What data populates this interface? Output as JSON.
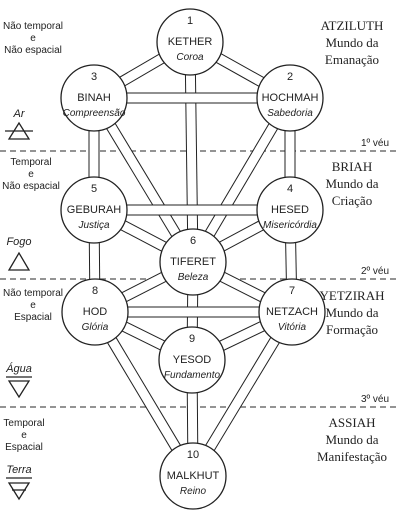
{
  "sephirot": [
    {
      "id": "s1",
      "number": "1",
      "name": "KETHER",
      "meaning": "Coroa"
    },
    {
      "id": "s2",
      "number": "2",
      "name": "HOCHMAH",
      "meaning": "Sabedoria"
    },
    {
      "id": "s3",
      "number": "3",
      "name": "BINAH",
      "meaning": "Compreensão"
    },
    {
      "id": "s4",
      "number": "4",
      "name": "HESED",
      "meaning": "Misericórdia"
    },
    {
      "id": "s5",
      "number": "5",
      "name": "GEBURAH",
      "meaning": "Justiça"
    },
    {
      "id": "s6",
      "number": "6",
      "name": "TIFERET",
      "meaning": "Beleza"
    },
    {
      "id": "s7",
      "number": "7",
      "name": "NETZACH",
      "meaning": "Vitória"
    },
    {
      "id": "s8",
      "number": "8",
      "name": "HOD",
      "meaning": "Glória"
    },
    {
      "id": "s9",
      "number": "9",
      "name": "YESOD",
      "meaning": "Fundamento"
    },
    {
      "id": "s10",
      "number": "10",
      "name": "MALKHUT",
      "meaning": "Reino"
    }
  ],
  "paths": [
    [
      "s1",
      "s2"
    ],
    [
      "s1",
      "s3"
    ],
    [
      "s1",
      "s6"
    ],
    [
      "s2",
      "s3"
    ],
    [
      "s2",
      "s4"
    ],
    [
      "s2",
      "s6"
    ],
    [
      "s3",
      "s5"
    ],
    [
      "s3",
      "s6"
    ],
    [
      "s4",
      "s5"
    ],
    [
      "s4",
      "s6"
    ],
    [
      "s4",
      "s7"
    ],
    [
      "s5",
      "s6"
    ],
    [
      "s5",
      "s8"
    ],
    [
      "s6",
      "s7"
    ],
    [
      "s6",
      "s8"
    ],
    [
      "s6",
      "s9"
    ],
    [
      "s7",
      "s8"
    ],
    [
      "s7",
      "s9"
    ],
    [
      "s7",
      "s10"
    ],
    [
      "s8",
      "s9"
    ],
    [
      "s8",
      "s10"
    ],
    [
      "s9",
      "s10"
    ]
  ],
  "worlds": [
    {
      "id": "atziluth",
      "name": "ATZILUTH",
      "line2": "Mundo da",
      "line3": "Emanação"
    },
    {
      "id": "briah",
      "name": "BRIAH",
      "line2": "Mundo da",
      "line3": "Criação"
    },
    {
      "id": "yetzirah",
      "name": "YETZIRAH",
      "line2": "Mundo da",
      "line3": "Formação"
    },
    {
      "id": "assiah",
      "name": "ASSIAH",
      "line2": "Mundo da",
      "line3": "Manifestação"
    }
  ],
  "veils": [
    "1º véu",
    "2º véu",
    "3º véu"
  ],
  "qualities": [
    {
      "line1": "Não temporal",
      "line2": "e",
      "line3": "Não espacial"
    },
    {
      "line1": "Temporal",
      "line2": "e",
      "line3": "Não espacial"
    },
    {
      "line1": "Não temporal",
      "line2": "e",
      "line3": "Espacial"
    },
    {
      "line1": "Temporal",
      "line2": "e",
      "line3": "Espacial"
    }
  ],
  "elements": [
    {
      "name": "Ar",
      "icon": "air-triangle-icon"
    },
    {
      "name": "Fogo",
      "icon": "fire-triangle-icon"
    },
    {
      "name": "Água",
      "icon": "water-triangle-icon"
    },
    {
      "name": "Terra",
      "icon": "earth-triangle-icon"
    }
  ],
  "colors": {
    "line": "#222222",
    "veil": "#555555",
    "fill": "#ffffff"
  }
}
